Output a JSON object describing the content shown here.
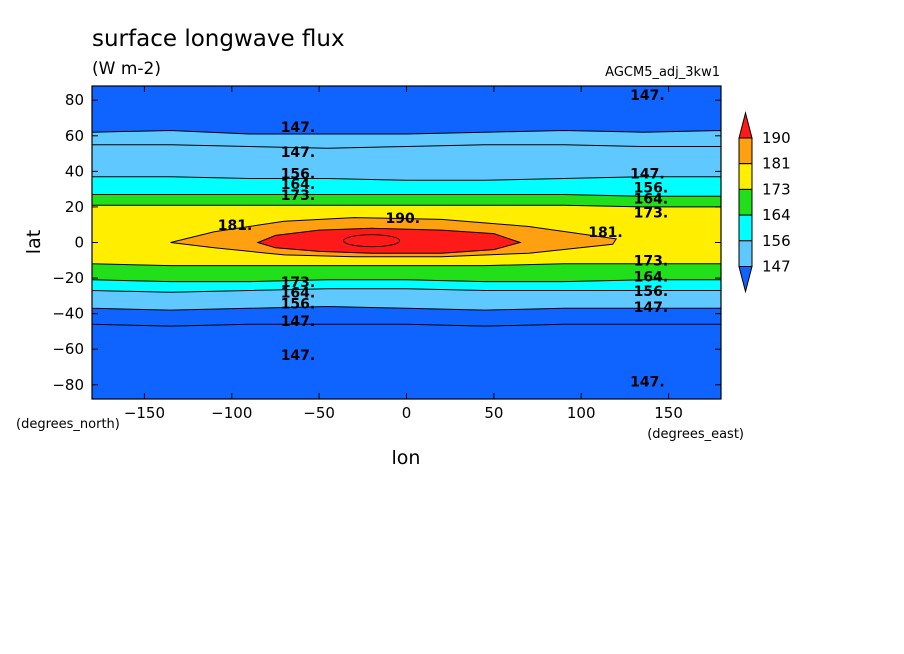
{
  "chart_data": {
    "type": "heatmap",
    "title": "surface longwave flux",
    "subtitle": "(W m-2)",
    "run_label": "AGCM5_adj_3kw1",
    "xlabel": "lon",
    "ylabel": "lat",
    "x_units": "(degrees_east)",
    "y_units": "(degrees_north)",
    "xlim": [
      -180,
      180
    ],
    "ylim": [
      -88,
      88
    ],
    "x_ticks": [
      -150,
      -100,
      -50,
      0,
      50,
      100,
      150
    ],
    "y_ticks": [
      -80,
      -60,
      -40,
      -20,
      0,
      20,
      40,
      60,
      80
    ],
    "contour_levels": [
      147,
      156,
      164,
      173,
      181,
      190
    ],
    "colorbar": {
      "labels": [
        "147",
        "156",
        "164",
        "173",
        "181",
        "190"
      ],
      "colors": [
        "#5fc9ff",
        "#00ffff",
        "#21e01a",
        "#ffee00",
        "#ffa010",
        "#ff1a1a"
      ],
      "below_color": "#0f64ff",
      "above_color": "#ff1a1a"
    },
    "fill_colors": {
      "lt147": "#0f64ff",
      "147_156": "#5fc9ff",
      "156_164": "#00ffff",
      "164_173": "#21e01a",
      "173_181": "#ffee00",
      "181_190": "#ffa010",
      "gt190": "#ff1a1a"
    },
    "contours": [
      {
        "level": 147,
        "lat_north": [
          62,
          63,
          61,
          61,
          61,
          62,
          63,
          62,
          63
        ],
        "lat_south": [
          -37,
          -38,
          -37,
          -36,
          -37,
          -38,
          -37,
          -37,
          -37
        ]
      },
      {
        "level": 156,
        "lat_north": [
          37,
          37,
          36,
          36,
          35,
          35,
          36,
          37,
          37
        ],
        "lat_south": [
          -27,
          -28,
          -27,
          -26,
          -26,
          -27,
          -27,
          -27,
          -27
        ]
      },
      {
        "level": 164,
        "lat_north": [
          27,
          27,
          27,
          27,
          27,
          27,
          27,
          26,
          26
        ],
        "lat_south": [
          -21,
          -22,
          -22,
          -21,
          -21,
          -22,
          -22,
          -21,
          -21
        ]
      },
      {
        "level": 173,
        "lat_north": [
          21,
          21,
          21,
          21,
          21,
          21,
          21,
          20,
          20
        ],
        "lat_south": [
          -12,
          -13,
          -13,
          -13,
          -13,
          -13,
          -12,
          -12,
          -12
        ]
      }
    ],
    "contour_labels": [
      {
        "text": "147.",
        "lon": 128,
        "lat": 80
      },
      {
        "text": "147.",
        "lon": -72,
        "lat": 62
      },
      {
        "text": "147.",
        "lon": -72,
        "lat": 48
      },
      {
        "text": "156.",
        "lon": -72,
        "lat": 36
      },
      {
        "text": "164.",
        "lon": -72,
        "lat": 30
      },
      {
        "text": "173.",
        "lon": -72,
        "lat": 24
      },
      {
        "text": "147.",
        "lon": 128,
        "lat": 36
      },
      {
        "text": "156.",
        "lon": 130,
        "lat": 28
      },
      {
        "text": "164.",
        "lon": 130,
        "lat": 22
      },
      {
        "text": "173.",
        "lon": 130,
        "lat": 14
      },
      {
        "text": "181.",
        "lon": -108,
        "lat": 7
      },
      {
        "text": "190.",
        "lon": -12,
        "lat": 11
      },
      {
        "text": "181.",
        "lon": 104,
        "lat": 3
      },
      {
        "text": "173.",
        "lon": 130,
        "lat": -13
      },
      {
        "text": "164.",
        "lon": 130,
        "lat": -22
      },
      {
        "text": "156.",
        "lon": 130,
        "lat": -30
      },
      {
        "text": "147.",
        "lon": 130,
        "lat": -39
      },
      {
        "text": "173.",
        "lon": -72,
        "lat": -25
      },
      {
        "text": "164.",
        "lon": -72,
        "lat": -31
      },
      {
        "text": "156.",
        "lon": -72,
        "lat": -37
      },
      {
        "text": "147.",
        "lon": -72,
        "lat": -47
      },
      {
        "text": "147.",
        "lon": -72,
        "lat": -66
      },
      {
        "text": "147.",
        "lon": 128,
        "lat": -81
      }
    ]
  }
}
